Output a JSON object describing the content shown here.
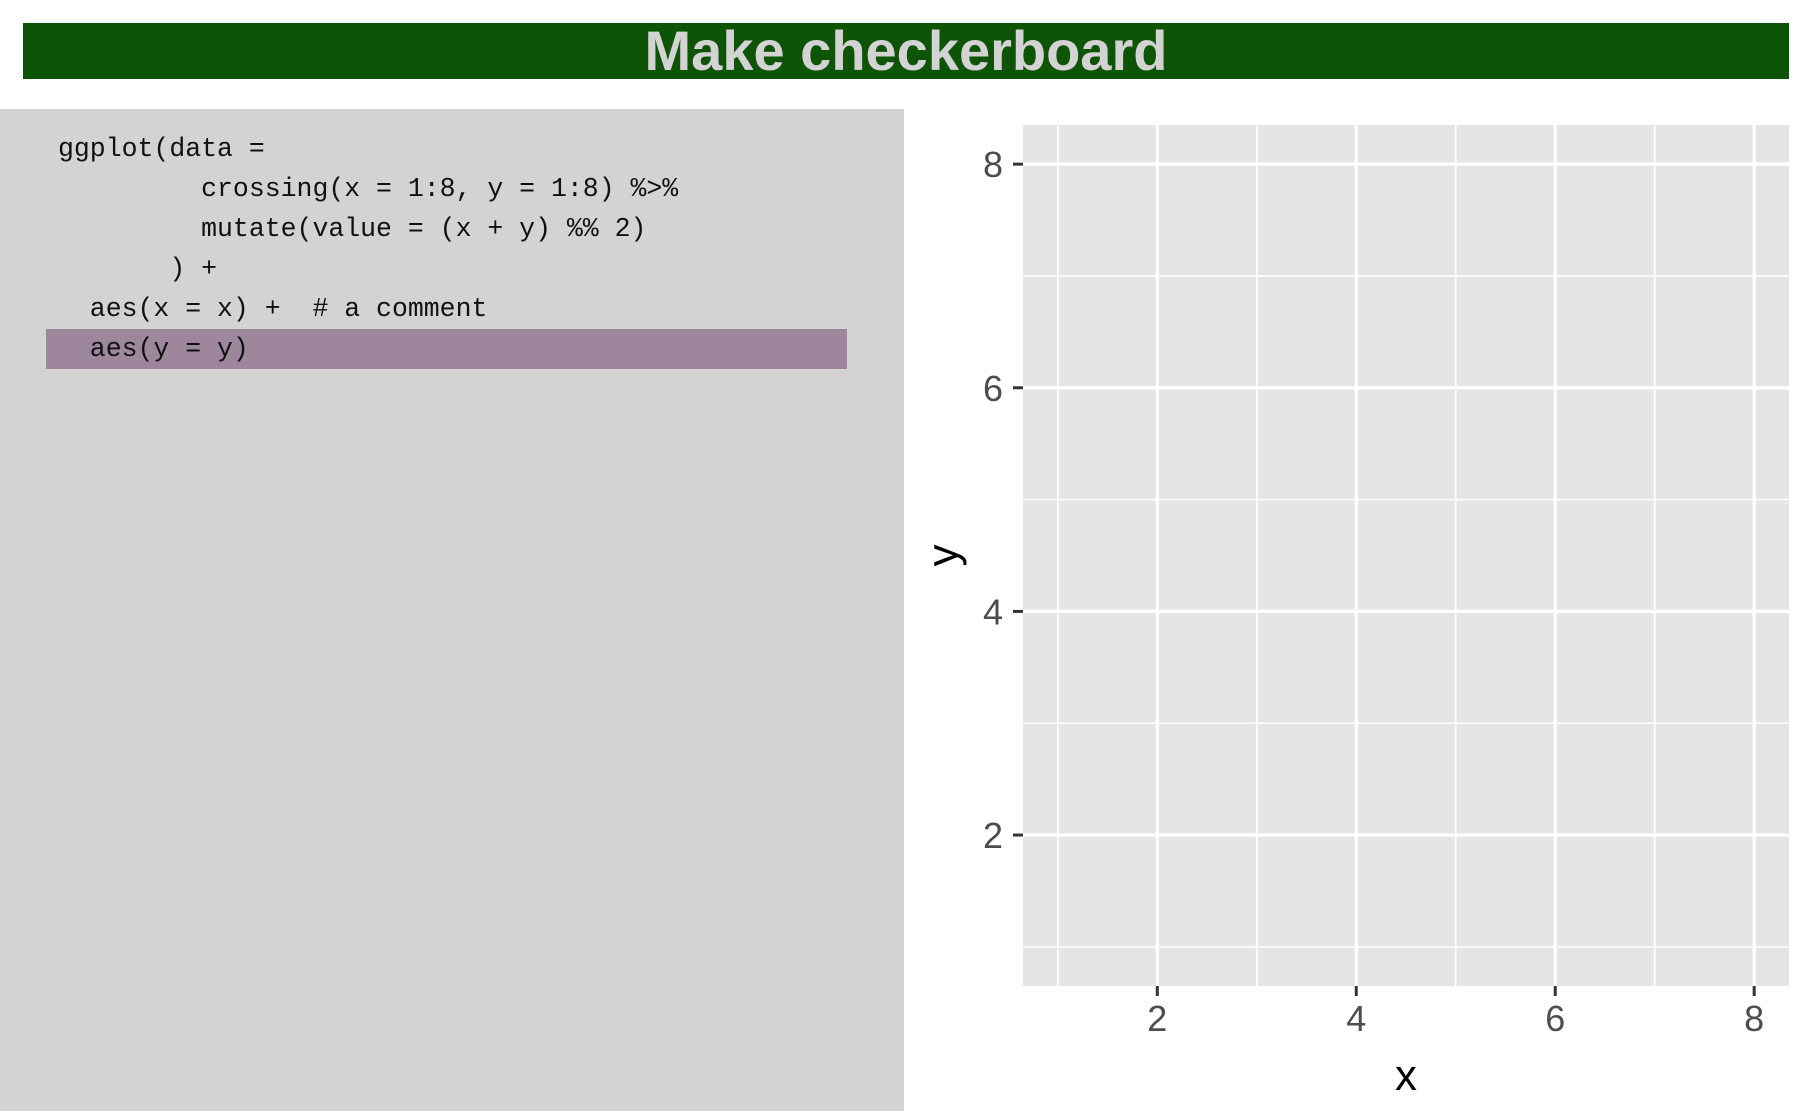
{
  "slide": {
    "title": "Make checkerboard"
  },
  "code": {
    "highlight_color": "#9e879d",
    "highlighted_line_index": 5,
    "lines": [
      "ggplot(data =",
      "         crossing(x = 1:8, y = 1:8) %>%",
      "         mutate(value = (x + y) %% 2)",
      "       ) +",
      "  aes(x = x) +  # a comment",
      "  aes(y = y)"
    ]
  },
  "colors": {
    "title_background": "#0e5407",
    "title_text": "#d3d3d3",
    "code_background": "#d3d3d3",
    "plot_panel_background": "#e5e5e5",
    "grid_line": "#ffffff"
  },
  "chart_data": {
    "type": "scatter",
    "title": "",
    "xlabel": "x",
    "ylabel": "y",
    "xlim": [
      0.65,
      8.35
    ],
    "ylim": [
      0.65,
      8.35
    ],
    "x_ticks": [
      2,
      4,
      6,
      8
    ],
    "y_ticks": [
      2,
      4,
      6,
      8
    ],
    "x_minor_grid": [
      1,
      3,
      5,
      7
    ],
    "y_minor_grid": [
      1,
      3,
      5,
      7
    ],
    "series": [],
    "grid": true,
    "legend": "none"
  }
}
